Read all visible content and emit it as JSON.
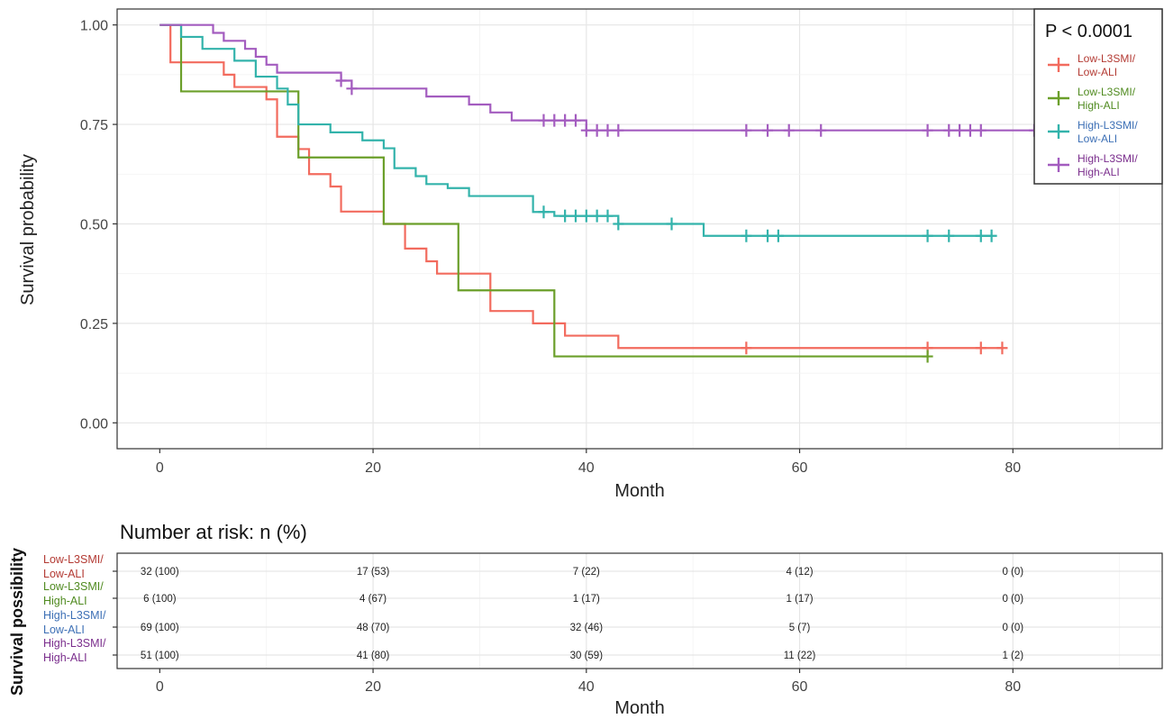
{
  "chart_data": [
    {
      "type": "line",
      "subtype": "kaplan-meier",
      "xlabel": "Month",
      "ylabel": "Survival probability",
      "xlim": [
        -4,
        94
      ],
      "ylim": [
        -0.065,
        1.04
      ],
      "x_ticks": [
        "0",
        "20",
        "40",
        "60",
        "80"
      ],
      "y_ticks": [
        "0.00",
        "0.25",
        "0.50",
        "0.75",
        "1.00"
      ],
      "grid": true,
      "legend": {
        "placement": "top-right",
        "title": "P < 0.0001",
        "entries": [
          {
            "line1": "Low-L3SMI/",
            "line2": "Low-ALI"
          },
          {
            "line1": "Low-L3SMI/",
            "line2": "High-ALI"
          },
          {
            "line1": "High-L3SMI/",
            "line2": "Low-ALI"
          },
          {
            "line1": "High-L3SMI/",
            "line2": "High-ALI"
          }
        ]
      },
      "series": [
        {
          "color": "#f26b5e",
          "steps": [
            [
              0,
              1.0
            ],
            [
              1,
              0.906
            ],
            [
              6,
              0.875
            ],
            [
              7,
              0.844
            ],
            [
              10,
              0.813
            ],
            [
              11,
              0.719
            ],
            [
              13,
              0.688
            ],
            [
              14,
              0.625
            ],
            [
              16,
              0.594
            ],
            [
              17,
              0.531
            ],
            [
              21,
              0.5
            ],
            [
              23,
              0.438
            ],
            [
              25,
              0.406
            ],
            [
              26,
              0.375
            ],
            [
              31,
              0.281
            ],
            [
              35,
              0.25
            ],
            [
              38,
              0.219
            ],
            [
              43,
              0.188
            ],
            [
              79,
              0.188
            ]
          ],
          "censored": [
            55,
            72,
            77,
            79
          ]
        },
        {
          "color": "#6b9f2a",
          "steps": [
            [
              0,
              1.0
            ],
            [
              2,
              0.833
            ],
            [
              13,
              0.667
            ],
            [
              21,
              0.5
            ],
            [
              28,
              0.333
            ],
            [
              37,
              0.167
            ],
            [
              72,
              0.167
            ]
          ],
          "censored": [
            72
          ]
        },
        {
          "color": "#33b3ab",
          "steps": [
            [
              0,
              1.0
            ],
            [
              2,
              0.97
            ],
            [
              4,
              0.94
            ],
            [
              7,
              0.91
            ],
            [
              9,
              0.87
            ],
            [
              11,
              0.84
            ],
            [
              12,
              0.8
            ],
            [
              13,
              0.75
            ],
            [
              16,
              0.73
            ],
            [
              19,
              0.71
            ],
            [
              21,
              0.69
            ],
            [
              22,
              0.64
            ],
            [
              24,
              0.62
            ],
            [
              25,
              0.6
            ],
            [
              27,
              0.59
            ],
            [
              29,
              0.57
            ],
            [
              35,
              0.53
            ],
            [
              37,
              0.52
            ],
            [
              43,
              0.5
            ],
            [
              51,
              0.47
            ],
            [
              78,
              0.47
            ]
          ],
          "censored": [
            36,
            38,
            39,
            40,
            41,
            42,
            43,
            48,
            55,
            57,
            58,
            72,
            74,
            77,
            78
          ]
        },
        {
          "color": "#a35cbf",
          "steps": [
            [
              0,
              1.0
            ],
            [
              5,
              0.98
            ],
            [
              6,
              0.96
            ],
            [
              8,
              0.94
            ],
            [
              9,
              0.92
            ],
            [
              10,
              0.9
            ],
            [
              11,
              0.88
            ],
            [
              17,
              0.86
            ],
            [
              18,
              0.84
            ],
            [
              25,
              0.82
            ],
            [
              29,
              0.8
            ],
            [
              31,
              0.78
            ],
            [
              33,
              0.76
            ],
            [
              40,
              0.735
            ],
            [
              88,
              0.735
            ]
          ],
          "censored": [
            17,
            18,
            36,
            37,
            38,
            39,
            40,
            41,
            42,
            43,
            55,
            57,
            59,
            62,
            72,
            74,
            75,
            76,
            77,
            82
          ]
        }
      ]
    },
    {
      "type": "table",
      "title": "Number at risk: n (%)",
      "side_label": "Survival possibility",
      "xlabel": "Month",
      "x_ticks": [
        "0",
        "20",
        "40",
        "60",
        "80"
      ],
      "times": [
        0,
        20,
        40,
        60,
        80
      ],
      "rows": [
        {
          "label1": "Low-L3SMI/",
          "label2": "Low-ALI",
          "color": "#b33a33",
          "values": [
            "32 (100)",
            "17 (53)",
            "7 (22)",
            "4 (12)",
            "0 (0)"
          ]
        },
        {
          "label1": "Low-L3SMI/",
          "label2": "High-ALI",
          "color": "#4f8a1f",
          "values": [
            "6 (100)",
            "4 (67)",
            "1 (17)",
            "1 (17)",
            "0 (0)"
          ]
        },
        {
          "label1": "High-L3SMI/",
          "label2": "Low-ALI",
          "color": "#3c6fb5",
          "values": [
            "69 (100)",
            "48 (70)",
            "32 (46)",
            "5 (7)",
            "0 (0)"
          ]
        },
        {
          "label1": "High-L3SMI/",
          "label2": "High-ALI",
          "color": "#7a2d8c",
          "values": [
            "51 (100)",
            "41 (80)",
            "30 (59)",
            "11 (22)",
            "1 (2)"
          ]
        }
      ]
    }
  ]
}
